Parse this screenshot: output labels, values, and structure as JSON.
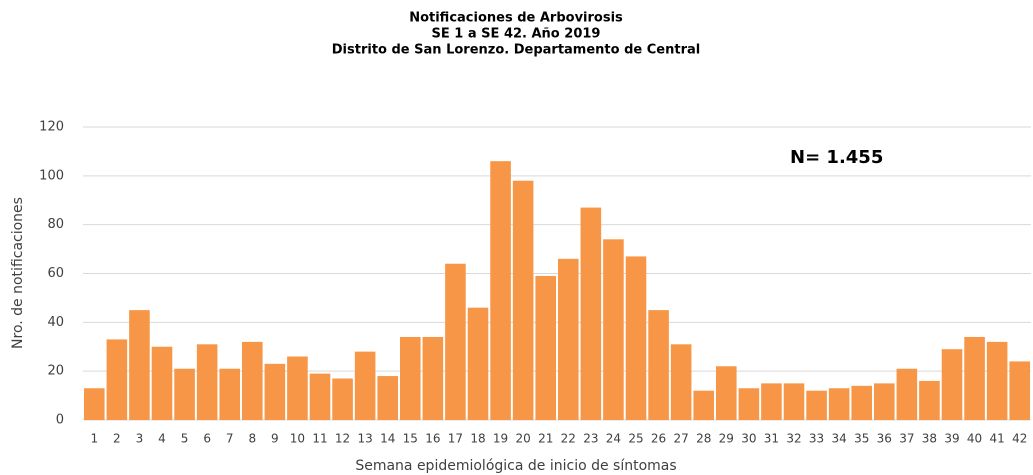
{
  "chart_data": {
    "type": "bar",
    "title": [
      "Notificaciones de Arbovirosis",
      "SE 1 a SE 42. Año 2019",
      "Distrito de San Lorenzo. Departamento de Central"
    ],
    "annotation": "N= 1.455",
    "x_label": "Semana epidemiológica de inicio de síntomas",
    "y_label": "Nro. de notificaciones",
    "categories": [
      "1",
      "2",
      "3",
      "4",
      "5",
      "6",
      "7",
      "8",
      "9",
      "10",
      "11",
      "12",
      "13",
      "14",
      "15",
      "16",
      "17",
      "18",
      "19",
      "20",
      "21",
      "22",
      "23",
      "24",
      "25",
      "26",
      "27",
      "28",
      "29",
      "30",
      "31",
      "32",
      "33",
      "34",
      "35",
      "36",
      "37",
      "38",
      "39",
      "40",
      "41",
      "42"
    ],
    "values": [
      13,
      33,
      45,
      30,
      21,
      31,
      21,
      32,
      23,
      26,
      19,
      17,
      28,
      18,
      34,
      34,
      64,
      46,
      106,
      98,
      59,
      66,
      87,
      74,
      67,
      45,
      31,
      12,
      22,
      13,
      15,
      15,
      12,
      13,
      14,
      15,
      21,
      16,
      29,
      34,
      32,
      24
    ],
    "color": "#f79646",
    "ylim": [
      0,
      120
    ],
    "yticks": [
      0,
      20,
      40,
      60,
      80,
      100,
      120
    ],
    "grid": true
  }
}
